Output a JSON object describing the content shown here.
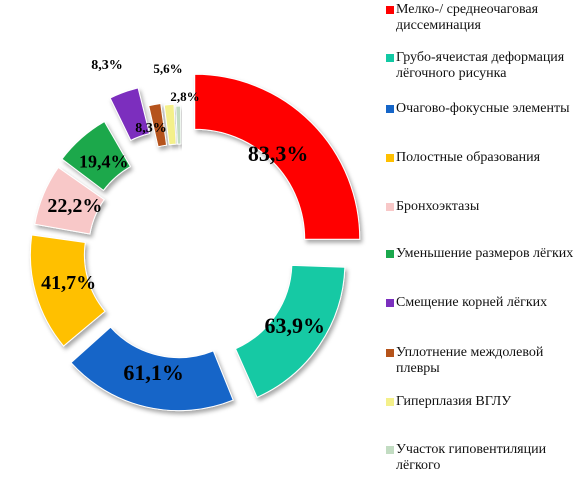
{
  "chart_data": {
    "type": "pie",
    "style": "exploded-doughnut-3d",
    "legend_position": "right",
    "series": [
      {
        "name": "Мелко-/ среднеочаговая диссеминация",
        "label": "83,3%",
        "value": 83.3,
        "color": "#ff0000"
      },
      {
        "name": "Грубо-ячеистая деформация лёгочного рисунка",
        "label": "63,9%",
        "value": 63.9,
        "color": "#12c9a4"
      },
      {
        "name": "Очагово-фокусные элементы",
        "label": "61,1%",
        "value": 61.1,
        "color": "#1565c8"
      },
      {
        "name": "Полостные образования",
        "label": "41,7%",
        "value": 41.7,
        "color": "#ffc000"
      },
      {
        "name": "Бронхоэктазы",
        "label": "22,2%",
        "value": 22.2,
        "color": "#f8c8c8"
      },
      {
        "name": "Уменьшение размеров лёгких",
        "label": "19,4%",
        "value": 19.4,
        "color": "#1aa84c"
      },
      {
        "name": "Смещение корней лёгких",
        "label": "8,3%",
        "value": 8.3,
        "color": "#7b2fbe"
      },
      {
        "name": "Уплотнение междолевой плевры",
        "label": "8,3%",
        "value": 8.3,
        "color": "#b5531a"
      },
      {
        "name": "Гиперплазия ВГЛУ",
        "label": "5,6%",
        "value": 5.6,
        "color": "#f4f08a"
      },
      {
        "name": "Участок гиповентиляции лёгкого",
        "label": "2,8%",
        "value": 2.8,
        "color": "#c2dcc2"
      }
    ]
  }
}
